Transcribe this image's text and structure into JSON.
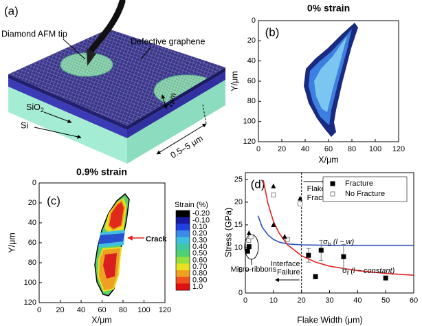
{
  "figure_a": {
    "panel_label": "(a)",
    "tip": "Diamond AFM tip",
    "film": "Defective graphene",
    "oxide": {
      "base": "SiO",
      "subscript": "2"
    },
    "substrate": "Si",
    "hole_size": "1μm",
    "width_range": "0.5–5 μm"
  },
  "chart_data": [
    {
      "type": "contour",
      "panel_label": "(b)",
      "title": "0% strain",
      "xlabel": "X/μm",
      "ylabel": "Y/μm",
      "xlim": [
        0,
        120
      ],
      "ylim": [
        120,
        0
      ],
      "xticks": [
        0,
        20,
        40,
        60,
        80,
        100,
        120
      ],
      "yticks": [
        0,
        20,
        40,
        60,
        80,
        100,
        120
      ]
    },
    {
      "type": "contour",
      "panel_label": "(c)",
      "title": "0.9% strain",
      "xlabel": "X/μm",
      "ylabel": "Y/μm",
      "xlim": [
        0,
        120
      ],
      "ylim": [
        120,
        0
      ],
      "xticks": [
        0,
        20,
        40,
        60,
        80,
        100,
        120
      ],
      "yticks": [
        0,
        20,
        40,
        60,
        80,
        100,
        120
      ],
      "annotation": "Crack",
      "colorbar": {
        "title": "Strain (%)",
        "levels": [
          {
            "value": -0.2,
            "label": "-0.20"
          },
          {
            "value": -0.1,
            "label": "-0.10"
          },
          {
            "value": 0.1,
            "label": "0.10"
          },
          {
            "value": 0.2,
            "label": "0.20"
          },
          {
            "value": 0.3,
            "label": "0.30"
          },
          {
            "value": 0.4,
            "label": "0.40"
          },
          {
            "value": 0.5,
            "label": "0.50"
          },
          {
            "value": 0.6,
            "label": "0.60"
          },
          {
            "value": 0.7,
            "label": "0.70"
          },
          {
            "value": 0.8,
            "label": "0.80"
          },
          {
            "value": 0.9,
            "label": "0.90"
          },
          {
            "value": 1,
            "label": "1.0"
          }
        ],
        "colors": [
          "#000000",
          "#1a1aa0",
          "#2040e0",
          "#3a8ae8",
          "#40c0e0",
          "#40c8a0",
          "#50d070",
          "#98e040",
          "#e8e020",
          "#f0a020",
          "#f05020",
          "#e01010"
        ]
      }
    },
    {
      "type": "scatter",
      "panel_label": "(d)",
      "xlabel": "Flake Width (μm)",
      "ylabel": "Stress (GPa)",
      "xlim": [
        0,
        60
      ],
      "ylim": [
        0,
        26.5
      ],
      "xticks": [
        0,
        10,
        20,
        30,
        40,
        50,
        60
      ],
      "yticks": [
        0,
        5,
        10,
        15,
        20,
        25
      ],
      "legend": "upper right",
      "series": [
        {
          "name": "Fracture",
          "color": "#000000",
          "marker": "filled-square",
          "x": [
            0.8,
            1.3,
            22.5,
            27,
            25,
            35,
            50
          ],
          "values": [
            9.2,
            10.2,
            8.3,
            9.4,
            3.6,
            8.0,
            3.3
          ],
          "errors": [
            null,
            null,
            1.5,
            2.2,
            0.5,
            2.7,
            0.4
          ]
        },
        {
          "name": "No Fracture",
          "color": "#808080",
          "marker": "open-square",
          "x": [
            1.2,
            2,
            10,
            19.5,
            15
          ],
          "values": [
            11.6,
            12.4,
            21.6,
            19.6,
            11.8
          ]
        },
        {
          "color": "#000000",
          "marker": "triangle",
          "x": [
            1.3,
            10,
            10,
            14,
            19.5
          ],
          "values": [
            13.2,
            23.5,
            15,
            12.4,
            20.8
          ]
        }
      ],
      "curves": [
        {
          "label": {
            "symbol": "σ",
            "subscript": "b",
            "relation": " (l ~ w)"
          },
          "color": "#2a4fb8",
          "x": [
            4.5,
            6,
            8,
            10,
            12,
            15,
            20,
            30,
            40,
            50,
            60
          ],
          "values": [
            17,
            14.5,
            12.8,
            11.8,
            11.2,
            10.8,
            10.6,
            10.5,
            10.5,
            10.5,
            10.5
          ]
        },
        {
          "label": {
            "symbol": "σ",
            "subscript": "f",
            "relation": " (l ~ constant)"
          },
          "color": "#e02020",
          "x": [
            6.4,
            8,
            10,
            12,
            15,
            20,
            25,
            30,
            40,
            50,
            60
          ],
          "values": [
            24.8,
            19.8,
            15.8,
            13.2,
            10.6,
            8.2,
            6.8,
            5.9,
            4.9,
            4.3,
            3.9
          ]
        }
      ],
      "divider_x": 20,
      "annotations": {
        "right": [
          "Flake",
          "Fracture"
        ],
        "left": [
          "Interface",
          "Failure"
        ],
        "group": "Micro-ribbons"
      }
    }
  ]
}
